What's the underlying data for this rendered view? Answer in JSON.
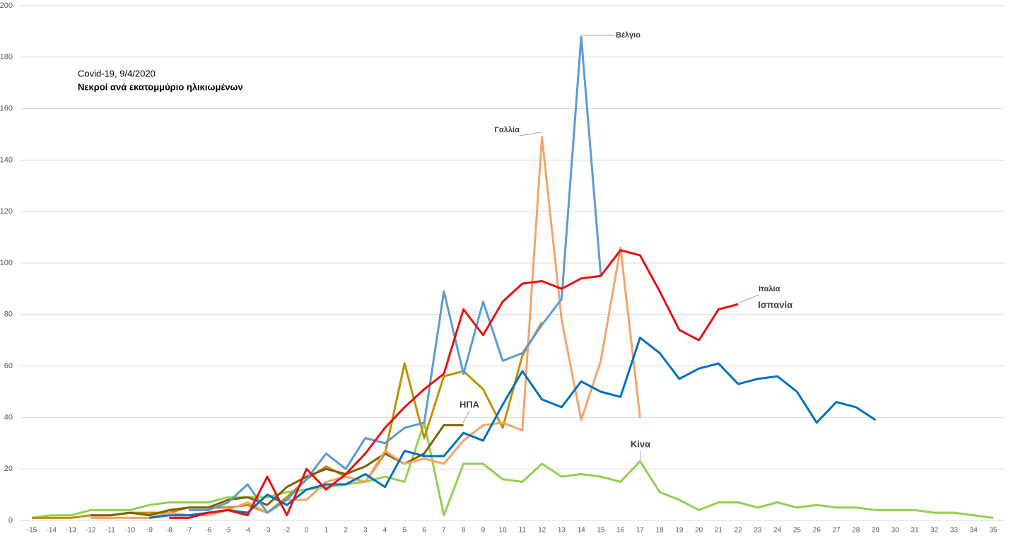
{
  "chart_data": {
    "type": "line",
    "title": "Covid-19, 9/4/2020",
    "subtitle": "Νεκροί ανά εκατομμύριο ηλικιωμένων",
    "categories": [
      -15,
      -14,
      -13,
      -12,
      -11,
      -10,
      -9,
      -8,
      -7,
      -6,
      -5,
      -4,
      -3,
      -2,
      0,
      1,
      2,
      3,
      4,
      5,
      6,
      7,
      8,
      9,
      10,
      11,
      12,
      13,
      14,
      15,
      16,
      17,
      18,
      19,
      20,
      21,
      22,
      23,
      24,
      25,
      26,
      27,
      28,
      29,
      30,
      31,
      32,
      33,
      34,
      35
    ],
    "ylim": [
      0,
      200
    ],
    "yticks": [
      0,
      20,
      40,
      60,
      80,
      100,
      120,
      140,
      160,
      180,
      200
    ],
    "grid": true,
    "series": [
      {
        "name": "Κίνα",
        "color": "#92d050",
        "values": [
          1,
          2,
          2,
          4,
          4,
          4,
          6,
          7,
          7,
          7,
          9,
          9,
          9,
          11,
          12,
          13,
          14,
          15,
          17,
          15,
          38,
          2,
          22,
          22,
          16,
          15,
          22,
          17,
          18,
          17,
          15,
          23,
          11,
          8,
          4,
          7,
          7,
          5,
          7,
          5,
          6,
          5,
          5,
          4,
          4,
          4,
          3,
          3,
          2,
          1
        ]
      },
      {
        "color": "#bf9000",
        "values": [
          1,
          1,
          1,
          2,
          2,
          3,
          3,
          3,
          5,
          5,
          5,
          6,
          3,
          9,
          16,
          21,
          17,
          15,
          26,
          61,
          32,
          56,
          58,
          51,
          36,
          64,
          77,
          null,
          null,
          null,
          null,
          null,
          null,
          null,
          null,
          null,
          null,
          null,
          null,
          null,
          null,
          null,
          null,
          null,
          null,
          null,
          null,
          null,
          null,
          null
        ]
      },
      {
        "name": "ΗΠΑ",
        "color": "#7f6000",
        "values": [
          null,
          null,
          null,
          2,
          2,
          3,
          2,
          4,
          5,
          5,
          8,
          9,
          6,
          13,
          17,
          20,
          18,
          21,
          26,
          22,
          26,
          37,
          37,
          null,
          null,
          null,
          null,
          null,
          null,
          null,
          null,
          null,
          null,
          null,
          null,
          null,
          null,
          null,
          null,
          null,
          null,
          null,
          null,
          null,
          null,
          null,
          null,
          null,
          null,
          null
        ]
      },
      {
        "name": "Γαλλία",
        "color": "#f4a46a",
        "values": [
          null,
          null,
          null,
          1,
          1,
          1,
          1,
          3,
          2,
          2,
          4,
          7,
          3,
          8,
          8,
          15,
          17,
          15,
          27,
          22,
          24,
          22,
          31,
          37,
          38,
          35,
          149,
          78,
          39,
          62,
          106,
          40,
          null,
          null,
          null,
          null,
          null,
          null,
          null,
          null,
          null,
          null,
          null,
          null,
          null,
          null,
          null,
          null,
          null,
          null
        ]
      },
      {
        "name": "Βέλγιο",
        "color": "#5b9bd5",
        "values": [
          null,
          null,
          null,
          null,
          null,
          null,
          null,
          null,
          4,
          4,
          7,
          14,
          3,
          8,
          16,
          26,
          20,
          32,
          30,
          36,
          38,
          89,
          57,
          85,
          62,
          65,
          76,
          86,
          188,
          95,
          null,
          null,
          null,
          null,
          null,
          null,
          null,
          null,
          null,
          null,
          null,
          null,
          null,
          null,
          null,
          null,
          null,
          null,
          null,
          null
        ]
      },
      {
        "name": "Ιταλία",
        "color": "#0070c0",
        "values": [
          null,
          null,
          null,
          null,
          null,
          null,
          1,
          2,
          2,
          3,
          4,
          3,
          10,
          6,
          12,
          14,
          14,
          18,
          13,
          27,
          25,
          25,
          34,
          31,
          45,
          58,
          47,
          44,
          54,
          50,
          48,
          71,
          65,
          55,
          59,
          61,
          53,
          55,
          56,
          50,
          38,
          46,
          44,
          39,
          null,
          null,
          null,
          null,
          null,
          null
        ]
      },
      {
        "name": "Ισπανία",
        "color": "#e81010",
        "values": [
          null,
          null,
          null,
          null,
          null,
          null,
          null,
          1,
          1,
          3,
          4,
          2,
          17,
          2,
          20,
          12,
          18,
          26,
          36,
          44,
          51,
          57,
          82,
          72,
          85,
          92,
          93,
          90,
          94,
          95,
          105,
          103,
          89,
          74,
          70,
          82,
          84,
          null,
          null,
          null,
          null,
          null,
          null,
          null,
          null,
          null,
          null,
          null,
          null,
          null
        ]
      }
    ]
  }
}
